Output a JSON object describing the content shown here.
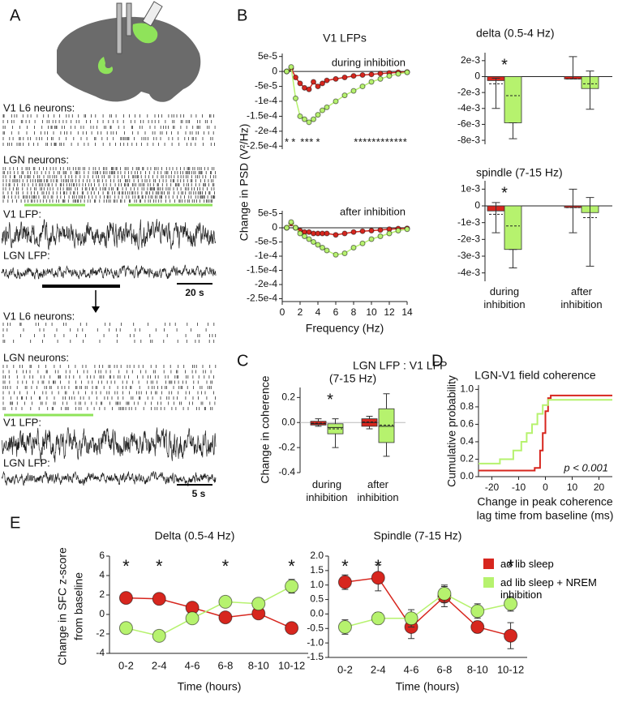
{
  "panel_labels": [
    "A",
    "B",
    "C",
    "D",
    "E"
  ],
  "panel_a": {
    "top": {
      "v1_units": "V1 L6 neurons:",
      "lgn_units": "LGN neurons:",
      "v1_lfp": "V1 LFP:",
      "lgn_lfp": "LGN LFP:",
      "scale": "20 s"
    },
    "bottom": {
      "v1_units": "V1 L6 neurons:",
      "lgn_units": "LGN neurons:",
      "v1_lfp": "V1 LFP:",
      "lgn_lfp": "LGN LFP:",
      "scale": "5 s"
    }
  },
  "chart_data": [
    {
      "type": "line",
      "title": "V1 LFPs",
      "annotation": "during inhibition",
      "ylabel": "Change in PSD (V²/Hz)",
      "xlim": [
        0,
        14
      ],
      "ylim": [
        -0.00026,
        6e-05
      ],
      "yticks": [
        {
          "value": 5e-05,
          "label": "5e-5"
        },
        0,
        {
          "value": -5e-05,
          "label": "-5e-5"
        },
        {
          "value": -0.0001,
          "label": "-1e-4"
        },
        {
          "value": -0.00015,
          "label": "-1.5e-4"
        },
        {
          "value": -0.0002,
          "label": "-2e-4"
        },
        {
          "value": -0.00025,
          "label": "-2.5e-4"
        }
      ],
      "x": [
        0.5,
        1,
        1.5,
        2,
        2.5,
        3,
        3.5,
        4,
        4.5,
        5,
        6,
        7,
        8,
        9,
        10,
        11,
        12,
        13,
        14
      ],
      "series": [
        {
          "color": "#d7261e",
          "values": [
            0,
            1e-05,
            -2e-05,
            -4e-05,
            -5.5e-05,
            -6e-05,
            -3.5e-05,
            -5e-05,
            -4e-05,
            -3e-05,
            -2.5e-05,
            -2e-05,
            -1.5e-05,
            -1.2e-05,
            -1e-05,
            -7e-06,
            -5e-06,
            -3e-06,
            -2e-06
          ]
        },
        {
          "color": "#b6f26e",
          "values": [
            0,
            1.5e-05,
            -9e-05,
            -0.00015,
            -0.00016,
            -0.00017,
            -0.00016,
            -0.000145,
            -0.00013,
            -0.00012,
            -0.0001,
            -8e-05,
            -6.5e-05,
            -5e-05,
            -3.5e-05,
            -2.5e-05,
            -1.5e-05,
            -8e-06,
            -3e-06
          ]
        }
      ],
      "markers": true,
      "zero_line": true,
      "marker": "*",
      "significant_x": [
        0.5,
        1.25,
        2.25,
        2.75,
        3.25,
        4,
        8.25,
        8.75,
        9.25,
        9.75,
        10.25,
        10.75,
        11.25,
        11.75,
        12.25,
        12.75,
        13.25,
        13.75
      ]
    },
    {
      "type": "line",
      "annotation": "after inhibition",
      "xlabel": "Frequency (Hz)",
      "xlim": [
        0,
        14
      ],
      "ylim": [
        -0.00026,
        6e-05
      ],
      "xticks": [
        0,
        2,
        4,
        6,
        8,
        10,
        12,
        14
      ],
      "yticks": [
        {
          "value": 5e-05,
          "label": "5e-5"
        },
        0,
        {
          "value": -5e-05,
          "label": "-5e-5"
        },
        {
          "value": -0.0001,
          "label": "-1e-4"
        },
        {
          "value": -0.00015,
          "label": "-1.5e-4"
        },
        {
          "value": -0.0002,
          "label": "-2e-4"
        },
        {
          "value": -0.00025,
          "label": "-2.5e-4"
        }
      ],
      "x": [
        0.5,
        1,
        1.5,
        2,
        2.5,
        3,
        3.5,
        4,
        4.5,
        5,
        6,
        7,
        8,
        9,
        10,
        11,
        12,
        13,
        14
      ],
      "series": [
        {
          "color": "#d7261e",
          "values": [
            0,
            1.5e-05,
            0,
            -1e-05,
            -1.5e-05,
            -1.5e-05,
            -2e-05,
            -2e-05,
            -2e-05,
            -2e-05,
            -2.5e-05,
            -2e-05,
            -1.5e-05,
            -1.2e-05,
            -1e-05,
            -8e-06,
            -5e-06,
            -3e-06,
            -2e-06
          ]
        },
        {
          "color": "#b6f26e",
          "values": [
            0,
            2e-05,
            0,
            -2e-05,
            -3e-05,
            -4e-05,
            -5e-05,
            -6e-05,
            -7e-05,
            -8e-05,
            -9.5e-05,
            -9e-05,
            -7e-05,
            -5.5e-05,
            -4e-05,
            -3e-05,
            -2e-05,
            -1e-05,
            -5e-06
          ]
        }
      ],
      "markers": true,
      "zero_line": true
    },
    {
      "type": "bar",
      "title": "delta (0.5-4 Hz)",
      "categories": [
        null,
        null
      ],
      "ylim": [
        -0.0085,
        0.003
      ],
      "yticks": [
        {
          "value": 0.002,
          "label": "2e-3"
        },
        0,
        {
          "value": -0.002,
          "label": "-2e-3"
        },
        {
          "value": -0.004,
          "label": "-4e-3"
        },
        {
          "value": -0.006,
          "label": "-6e-3"
        },
        {
          "value": -0.008,
          "label": "-8e-3"
        }
      ],
      "series": [
        {
          "color": "#d7261e",
          "values": [
            -0.0005,
            -0.0003
          ],
          "errors_minus": [
            0.0035,
            0
          ],
          "errors_plus": [
            0.0003,
            0.0028
          ],
          "means": [
            -0.0009,
            -0.0003
          ]
        },
        {
          "color": "#b6f26e",
          "values": [
            -0.0058,
            -0.0015
          ],
          "errors_minus": [
            0.002,
            0.0026
          ],
          "errors_plus": [
            0,
            0.0022
          ],
          "means": [
            -0.0024,
            -0.0009
          ]
        }
      ],
      "annotations": [
        {
          "text": "*",
          "category": 0
        }
      ]
    },
    {
      "type": "bar",
      "title": "spindle (7-15 Hz)",
      "categories": [
        "during inhibition",
        "after inhibition"
      ],
      "ylim": [
        -0.0045,
        0.0015
      ],
      "yticks": [
        {
          "value": 0.001,
          "label": "1e-3"
        },
        0,
        {
          "value": -0.001,
          "label": "-1e-3"
        },
        {
          "value": -0.002,
          "label": "-2e-3"
        },
        {
          "value": -0.003,
          "label": "-3e-3"
        },
        {
          "value": -0.004,
          "label": "-4e-3"
        }
      ],
      "series": [
        {
          "color": "#d7261e",
          "values": [
            -0.0003,
            -0.0001
          ],
          "errors_minus": [
            0.0013,
            0.0015
          ],
          "errors_plus": [
            0.0005,
            0.0011
          ],
          "means": [
            -0.0005,
            -0.0001
          ]
        },
        {
          "color": "#b6f26e",
          "values": [
            -0.0026,
            -0.0004
          ],
          "errors_minus": [
            0.0011,
            0.0032
          ],
          "errors_plus": [
            0,
            0.0009
          ],
          "means": [
            -0.0012,
            -0.0007
          ]
        }
      ],
      "annotations": [
        {
          "text": "*",
          "category": 0
        }
      ]
    },
    {
      "type": "box",
      "title": "LGN LFP : V1 LFP",
      "subtitle": "(7-15 Hz)",
      "ylabel": "Change in coherence",
      "categories": [
        "during inhibition",
        "after inhibition"
      ],
      "ylim": [
        -0.4,
        0.28
      ],
      "yticks": [
        0.2,
        {
          "value": 0,
          "label": "0.0"
        },
        -0.2,
        -0.4
      ],
      "series": [
        {
          "color": "#d7261e",
          "boxes": [
            {
              "whislo": -0.03,
              "q1": -0.02,
              "med": -0.01,
              "q3": 0.01,
              "whishi": 0.03,
              "mean": -0.005
            },
            {
              "whislo": -0.05,
              "q1": -0.03,
              "med": 0,
              "q3": 0.03,
              "whishi": 0.05,
              "mean": 0.005
            }
          ]
        },
        {
          "color": "#b6f26e",
          "boxes": [
            {
              "whislo": -0.2,
              "q1": -0.09,
              "med": -0.04,
              "q3": -0.01,
              "whishi": 0.03,
              "mean": -0.05
            },
            {
              "whislo": -0.27,
              "q1": -0.16,
              "med": -0.03,
              "q3": 0.11,
              "whishi": 0.23,
              "mean": -0.02
            }
          ]
        }
      ],
      "annotations": [
        {
          "text": "*",
          "category": 0
        }
      ]
    },
    {
      "type": "line",
      "title": "LGN-V1 field coherence",
      "ylabel": "Cumulative probability",
      "xlabel": [
        "Change in peak coherence",
        "lag time from baseline (ms)"
      ],
      "annotation": "p < 0.001",
      "xlim": [
        -25,
        25
      ],
      "ylim": [
        0,
        1.05
      ],
      "xticks": [
        -20,
        -10,
        0,
        10,
        20
      ],
      "yticks": [
        {
          "value": 0,
          "label": "0.0"
        },
        0.2,
        0.4,
        0.6,
        0.8,
        {
          "value": 1,
          "label": "1.0"
        }
      ],
      "series": [
        {
          "color": "#d7261e",
          "x": [
            -25,
            -4,
            -4,
            -2,
            -2,
            -1,
            -1,
            0,
            0,
            1,
            1,
            2,
            2,
            25
          ],
          "values": [
            0.07,
            0.07,
            0.1,
            0.1,
            0.3,
            0.3,
            0.5,
            0.5,
            0.75,
            0.75,
            0.9,
            0.9,
            0.93,
            0.93
          ]
        },
        {
          "color": "#b6f26e",
          "x": [
            -25,
            -17,
            -17,
            -12,
            -12,
            -9,
            -9,
            -7,
            -7,
            -5,
            -5,
            -3,
            -3,
            -1,
            -1,
            1,
            1,
            25
          ],
          "values": [
            0.15,
            0.15,
            0.2,
            0.2,
            0.3,
            0.3,
            0.4,
            0.4,
            0.5,
            0.5,
            0.6,
            0.6,
            0.72,
            0.72,
            0.82,
            0.82,
            0.88,
            0.88
          ]
        }
      ]
    },
    {
      "type": "line",
      "title": "Delta (0.5-4 Hz)",
      "ylabel": [
        "Change in SFC z-score",
        "from baseline"
      ],
      "xlabel": "Time (hours)",
      "categories": [
        "0-2",
        "2-4",
        "4-6",
        "6-8",
        "8-10",
        "10-12"
      ],
      "ylim": [
        -4,
        6
      ],
      "yticks": [
        6,
        4,
        2,
        0,
        -2,
        -4
      ],
      "series": [
        {
          "name": "ad lib sleep",
          "color": "#d7261e",
          "values": [
            1.7,
            1.6,
            0.7,
            -0.3,
            0.1,
            -1.4
          ],
          "errors": [
            0.35,
            0.45,
            0.35,
            0.35,
            0.4,
            0.4
          ]
        },
        {
          "name": "ad lib sleep + NREM inhibition",
          "color": "#b6f26e",
          "values": [
            -1.4,
            -2.2,
            -0.4,
            1.3,
            1.1,
            2.9
          ],
          "errors": [
            0.35,
            0.5,
            0.4,
            0.45,
            0.4,
            0.7
          ]
        }
      ],
      "markers": true,
      "legend": "right",
      "marker": "*",
      "significant": [
        "0-2",
        "2-4",
        "6-8",
        "10-12"
      ]
    },
    {
      "type": "line",
      "title": "Spindle (7-15 Hz)",
      "xlabel": "Time (hours)",
      "categories": [
        "0-2",
        "2-4",
        "4-6",
        "6-8",
        "8-10",
        "10-12"
      ],
      "ylim": [
        -1.5,
        2
      ],
      "yticks": [
        {
          "value": 2,
          "label": "2.0"
        },
        1.5,
        {
          "value": 1,
          "label": "1.0"
        },
        0.5,
        {
          "value": 0,
          "label": "0.0"
        },
        -0.5,
        {
          "value": -1,
          "label": "-1.0"
        },
        -1.5
      ],
      "series": [
        {
          "color": "#d7261e",
          "values": [
            1.1,
            1.25,
            -0.45,
            0.6,
            -0.45,
            -0.75
          ],
          "errors": [
            0.25,
            0.45,
            0.4,
            0.35,
            0.2,
            0.45
          ]
        },
        {
          "color": "#b6f26e",
          "values": [
            -0.45,
            -0.15,
            -0.15,
            0.7,
            0.1,
            0.35
          ],
          "errors": [
            0.25,
            0.2,
            0.3,
            0.3,
            0.25,
            0.25
          ]
        }
      ],
      "markers": true,
      "marker": "*",
      "significant": [
        "0-2",
        "2-4",
        "10-12"
      ]
    }
  ]
}
